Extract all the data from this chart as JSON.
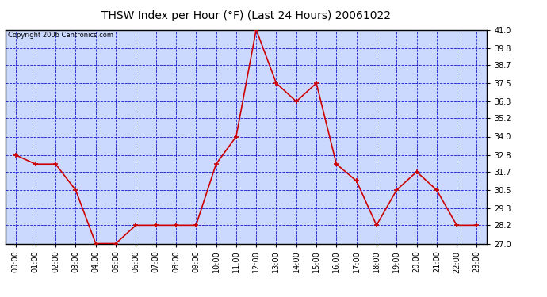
{
  "title": "THSW Index per Hour (°F) (Last 24 Hours) 20061022",
  "copyright": "Copyright 2006 Cantronics.com",
  "hours": [
    "00:00",
    "01:00",
    "02:00",
    "03:00",
    "04:00",
    "05:00",
    "06:00",
    "07:00",
    "08:00",
    "09:00",
    "10:00",
    "11:00",
    "12:00",
    "13:00",
    "14:00",
    "15:00",
    "16:00",
    "17:00",
    "18:00",
    "19:00",
    "20:00",
    "21:00",
    "22:00",
    "23:00"
  ],
  "values": [
    32.8,
    32.2,
    32.2,
    30.5,
    27.0,
    27.0,
    28.2,
    28.2,
    28.2,
    28.2,
    32.2,
    34.0,
    41.0,
    37.5,
    36.3,
    37.5,
    32.2,
    31.1,
    28.2,
    30.5,
    31.7,
    30.5,
    28.2,
    28.2
  ],
  "ylim": [
    27.0,
    41.0
  ],
  "yticks": [
    27.0,
    28.2,
    29.3,
    30.5,
    31.7,
    32.8,
    34.0,
    35.2,
    36.3,
    37.5,
    38.7,
    39.8,
    41.0
  ],
  "line_color": "#cc0000",
  "marker_color": "#cc0000",
  "bg_color": "#ccd9ff",
  "grid_color": "#0000cc",
  "title_color": "#000000",
  "title_fontsize": 10,
  "copyright_fontsize": 6,
  "tick_fontsize": 7
}
